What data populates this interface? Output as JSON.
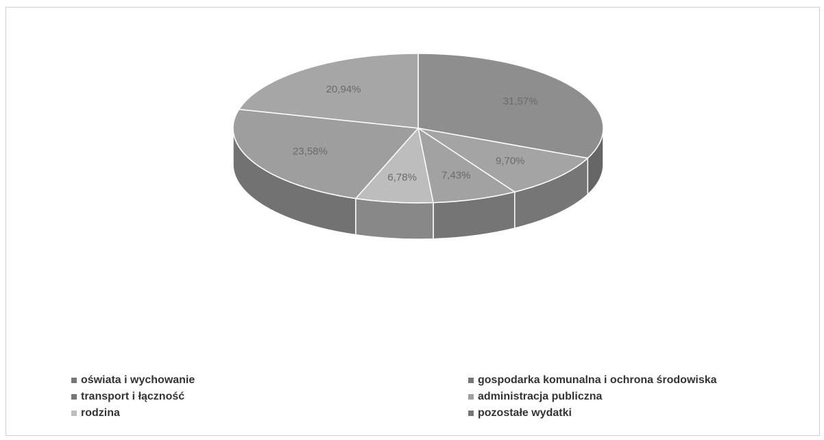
{
  "chart_data": {
    "type": "pie",
    "style": "3d",
    "slices": [
      {
        "label": "oświata i wychowanie",
        "value_label": "31,57%",
        "value": 31.57,
        "color": "#8e8e8e"
      },
      {
        "label": "gospodarka komunalna i ochrona środowiska",
        "value_label": "9,70%",
        "value": 9.7,
        "color": "#a4a4a4"
      },
      {
        "label": "transport i łączność",
        "value_label": "7,43%",
        "value": 7.43,
        "color": "#a2a2a2"
      },
      {
        "label": "administracja publiczna",
        "value_label": "6,78%",
        "value": 6.78,
        "color": "#bdbdbd"
      },
      {
        "label": "rodzina",
        "value_label": "23,58%",
        "value": 23.58,
        "color": "#9e9e9e"
      },
      {
        "label": "pozostałe wydatki",
        "value_label": "20,94%",
        "value": 20.94,
        "color": "#a6a6a6"
      }
    ],
    "legend_position": "bottom",
    "legend": [
      {
        "label": "oświata i wychowanie",
        "color": "#777777"
      },
      {
        "label": "transport i łączność",
        "color": "#777777"
      },
      {
        "label": "rodzina",
        "color": "#bdbdbd"
      },
      {
        "label": "gospodarka komunalna i ochrona środowiska",
        "color": "#777777"
      },
      {
        "label": "administracja publiczna",
        "color": "#a0a0a0"
      },
      {
        "label": "pozostałe wydatki",
        "color": "#777777"
      }
    ]
  }
}
